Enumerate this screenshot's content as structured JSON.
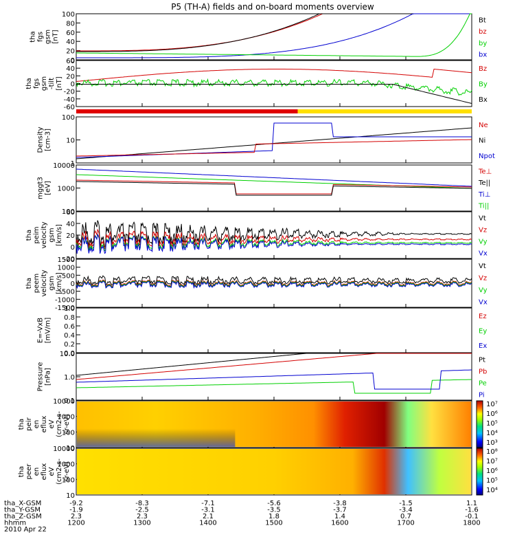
{
  "title": "P5 (TH-A) fields and on-board moments overview",
  "colors": {
    "black": "#000000",
    "red": "#d40000",
    "green": "#00d000",
    "blue": "#0000d0"
  },
  "chart_data": {
    "type": "line",
    "x_ticks": [
      "1200",
      "1300",
      "1400",
      "1500",
      "1600",
      "1700",
      "1800"
    ],
    "orbit": {
      "labels": [
        "tha_X-GSM",
        "tha_Y-GSM",
        "tha_Z-GSM",
        "hhmm",
        "2010 Apr 22"
      ],
      "x_gsm": [
        "-9.2",
        "-8.3",
        "-7.1",
        "-5.6",
        "-3.8",
        "-1.5",
        "1.1"
      ],
      "y_gsm": [
        "-1.9",
        "-2.5",
        "-3.1",
        "-3.5",
        "-3.7",
        "-3.4",
        "-1.6"
      ],
      "z_gsm": [
        "2.3",
        "2.3",
        "2.1",
        "1.8",
        "1.4",
        "0.7",
        "-0.1"
      ]
    },
    "panels": [
      {
        "ylabel": [
          "tha",
          "fgs",
          "gsm",
          "[nT]"
        ],
        "ticks": [
          "100",
          "80",
          "60",
          "40",
          "20",
          "0"
        ],
        "legend": [
          {
            "t": "Bt",
            "c": "black"
          },
          {
            "t": "bz",
            "c": "red"
          },
          {
            "t": "by",
            "c": "green"
          },
          {
            "t": "bx",
            "c": "blue"
          }
        ]
      },
      {
        "ylabel": [
          "tha",
          "fgs",
          "gsm",
          "-tilt",
          "[nT]"
        ],
        "ticks": [
          "60",
          "40",
          "20",
          "0",
          "-20",
          "-40",
          "-60"
        ],
        "legend": [
          {
            "t": "Bz",
            "c": "red"
          },
          {
            "t": "By",
            "c": "green"
          },
          {
            "t": "Bx",
            "c": "black"
          }
        ]
      },
      {
        "ylabel": [
          "Density",
          "[cm-3]"
        ],
        "ticks": [
          "100",
          "10",
          "1"
        ],
        "legend": [
          {
            "t": "Ne",
            "c": "red"
          },
          {
            "t": "Ni",
            "c": "black"
          },
          {
            "t": "Npot",
            "c": "blue"
          }
        ]
      },
      {
        "ylabel": [
          "mggt3",
          "[eV]"
        ],
        "ticks": [
          "10000",
          "1000",
          "100"
        ],
        "legend": [
          {
            "t": "Te⊥",
            "c": "red"
          },
          {
            "t": "Te||",
            "c": "black"
          },
          {
            "t": "Ti⊥",
            "c": "blue"
          },
          {
            "t": "Ti||",
            "c": "green"
          }
        ]
      },
      {
        "ylabel": [
          "tha",
          "peim",
          "velocity",
          "gsm",
          "[km/s]"
        ],
        "ticks": [
          "60",
          "40",
          "20",
          "0",
          "-20"
        ],
        "legend": [
          {
            "t": "Vt",
            "c": "black"
          },
          {
            "t": "Vz",
            "c": "red"
          },
          {
            "t": "Vy",
            "c": "green"
          },
          {
            "t": "Vx",
            "c": "blue"
          }
        ]
      },
      {
        "ylabel": [
          "tha",
          "peem",
          "velocity",
          "gsm",
          "[km/s]"
        ],
        "ticks": [
          "1500",
          "1000",
          "500",
          "0",
          "-500",
          "-1000",
          "-1500"
        ],
        "legend": [
          {
            "t": "Vt",
            "c": "black"
          },
          {
            "t": "Vz",
            "c": "red"
          },
          {
            "t": "Vy",
            "c": "green"
          },
          {
            "t": "Vx",
            "c": "blue"
          }
        ]
      },
      {
        "ylabel": [
          "E=-VxB",
          "[mV/m]"
        ],
        "ticks": [
          "1.0",
          "0.8",
          "0.6",
          "0.4",
          "0.2",
          "0.0"
        ],
        "legend": [
          {
            "t": "Ez",
            "c": "red"
          },
          {
            "t": "Ey",
            "c": "green"
          },
          {
            "t": "Ex",
            "c": "blue"
          }
        ]
      },
      {
        "ylabel": [
          "Pressure",
          "[nPa]"
        ],
        "ticks": [
          "10.0",
          "1.0",
          "0.1"
        ],
        "legend": [
          {
            "t": "Pt",
            "c": "black"
          },
          {
            "t": "Pb",
            "c": "red"
          },
          {
            "t": "Pe",
            "c": "green"
          },
          {
            "t": "Pi",
            "c": "blue"
          }
        ]
      },
      {
        "ylabel": [
          "tha",
          "peir",
          "en",
          "eflux",
          "eV",
          "(cm2-s-",
          "sr-eV)"
        ],
        "ticks": [
          "10000",
          "1000",
          "100",
          "10"
        ],
        "cbar": [
          "10⁷",
          "10⁶",
          "10⁵",
          "10⁴",
          "10³"
        ]
      },
      {
        "ylabel": [
          "tha",
          "peer",
          "en",
          "eflux",
          "eV",
          "(cm2-s-",
          "sr-eV)"
        ],
        "ticks": [
          "10000",
          "1000",
          "100",
          "10"
        ],
        "cbar": [
          "10⁸",
          "10⁷",
          "10⁶",
          "10⁵",
          "10⁴"
        ]
      }
    ]
  }
}
